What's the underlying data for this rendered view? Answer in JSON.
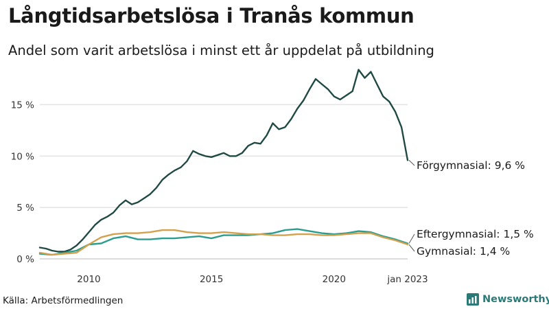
{
  "title": "Långtidsarbetslösa i Tranås kommun",
  "subtitle": "Andel som varit arbetslösa i minst ett år uppdelat på utbildning",
  "source": "Källa: Arbetsförmedlingen",
  "brand": {
    "name": "Newsworthy",
    "icon": "newsworthy-logo-icon",
    "color": "#2b7a78"
  },
  "chart_data": {
    "type": "line",
    "title": "Långtidsarbetslösa i Tranås kommun",
    "subtitle": "Andel som varit arbetslösa i minst ett år uppdelat på utbildning",
    "xlabel": "",
    "ylabel": "",
    "xlim": [
      2008.0,
      2023.0
    ],
    "ylim": [
      0,
      18.5
    ],
    "grid": true,
    "x_ticks": [
      {
        "value": 2010,
        "label": "2010"
      },
      {
        "value": 2015,
        "label": "2015"
      },
      {
        "value": 2020,
        "label": "2020"
      },
      {
        "value": 2023.0,
        "label": "jan 2023"
      }
    ],
    "y_ticks": [
      {
        "value": 0,
        "label": "0 %"
      },
      {
        "value": 5,
        "label": "5 %"
      },
      {
        "value": 10,
        "label": "10 %"
      },
      {
        "value": 15,
        "label": "15 %"
      }
    ],
    "series": [
      {
        "name": "Förgymnasial",
        "color": "#1f4a43",
        "end_label": "Förgymnasial: 9,6 %",
        "points": [
          [
            2008.0,
            1.1
          ],
          [
            2008.25,
            1.0
          ],
          [
            2008.5,
            0.8
          ],
          [
            2008.75,
            0.7
          ],
          [
            2009.0,
            0.7
          ],
          [
            2009.25,
            0.9
          ],
          [
            2009.5,
            1.3
          ],
          [
            2009.75,
            1.9
          ],
          [
            2010.0,
            2.6
          ],
          [
            2010.25,
            3.3
          ],
          [
            2010.5,
            3.8
          ],
          [
            2010.75,
            4.1
          ],
          [
            2011.0,
            4.5
          ],
          [
            2011.25,
            5.2
          ],
          [
            2011.5,
            5.7
          ],
          [
            2011.75,
            5.3
          ],
          [
            2012.0,
            5.5
          ],
          [
            2012.25,
            5.9
          ],
          [
            2012.5,
            6.3
          ],
          [
            2012.75,
            6.9
          ],
          [
            2013.0,
            7.7
          ],
          [
            2013.25,
            8.2
          ],
          [
            2013.5,
            8.6
          ],
          [
            2013.75,
            8.9
          ],
          [
            2014.0,
            9.5
          ],
          [
            2014.25,
            10.5
          ],
          [
            2014.5,
            10.2
          ],
          [
            2014.75,
            10.0
          ],
          [
            2015.0,
            9.9
          ],
          [
            2015.25,
            10.1
          ],
          [
            2015.5,
            10.3
          ],
          [
            2015.75,
            10.0
          ],
          [
            2016.0,
            10.0
          ],
          [
            2016.25,
            10.3
          ],
          [
            2016.5,
            11.0
          ],
          [
            2016.75,
            11.3
          ],
          [
            2017.0,
            11.2
          ],
          [
            2017.25,
            12.0
          ],
          [
            2017.5,
            13.2
          ],
          [
            2017.75,
            12.6
          ],
          [
            2018.0,
            12.8
          ],
          [
            2018.25,
            13.6
          ],
          [
            2018.5,
            14.6
          ],
          [
            2018.75,
            15.4
          ],
          [
            2019.0,
            16.5
          ],
          [
            2019.25,
            17.5
          ],
          [
            2019.5,
            17.0
          ],
          [
            2019.75,
            16.5
          ],
          [
            2020.0,
            15.8
          ],
          [
            2020.25,
            15.5
          ],
          [
            2020.5,
            15.9
          ],
          [
            2020.75,
            16.3
          ],
          [
            2021.0,
            18.4
          ],
          [
            2021.25,
            17.6
          ],
          [
            2021.5,
            18.2
          ],
          [
            2021.75,
            17.0
          ],
          [
            2022.0,
            15.8
          ],
          [
            2022.25,
            15.3
          ],
          [
            2022.5,
            14.3
          ],
          [
            2022.75,
            12.8
          ],
          [
            2023.0,
            9.6
          ]
        ]
      },
      {
        "name": "Eftergymnasial",
        "color": "#2a9d8f",
        "end_label": "Eftergymnasial: 1,5 %",
        "points": [
          [
            2008.0,
            0.5
          ],
          [
            2008.5,
            0.4
          ],
          [
            2009.0,
            0.6
          ],
          [
            2009.5,
            0.8
          ],
          [
            2010.0,
            1.4
          ],
          [
            2010.5,
            1.5
          ],
          [
            2011.0,
            2.0
          ],
          [
            2011.5,
            2.2
          ],
          [
            2012.0,
            1.9
          ],
          [
            2012.5,
            1.9
          ],
          [
            2013.0,
            2.0
          ],
          [
            2013.5,
            2.0
          ],
          [
            2014.0,
            2.1
          ],
          [
            2014.5,
            2.2
          ],
          [
            2015.0,
            2.0
          ],
          [
            2015.5,
            2.3
          ],
          [
            2016.0,
            2.3
          ],
          [
            2016.5,
            2.3
          ],
          [
            2017.0,
            2.4
          ],
          [
            2017.5,
            2.5
          ],
          [
            2018.0,
            2.8
          ],
          [
            2018.5,
            2.9
          ],
          [
            2019.0,
            2.7
          ],
          [
            2019.5,
            2.5
          ],
          [
            2020.0,
            2.4
          ],
          [
            2020.5,
            2.5
          ],
          [
            2021.0,
            2.7
          ],
          [
            2021.5,
            2.6
          ],
          [
            2022.0,
            2.2
          ],
          [
            2022.5,
            1.9
          ],
          [
            2023.0,
            1.5
          ]
        ]
      },
      {
        "name": "Gymnasial",
        "color": "#d3a04d",
        "end_label": "Gymnasial: 1,4 %",
        "points": [
          [
            2008.0,
            0.6
          ],
          [
            2008.5,
            0.4
          ],
          [
            2009.0,
            0.5
          ],
          [
            2009.5,
            0.6
          ],
          [
            2010.0,
            1.4
          ],
          [
            2010.5,
            2.1
          ],
          [
            2011.0,
            2.4
          ],
          [
            2011.5,
            2.5
          ],
          [
            2012.0,
            2.5
          ],
          [
            2012.5,
            2.6
          ],
          [
            2013.0,
            2.8
          ],
          [
            2013.5,
            2.8
          ],
          [
            2014.0,
            2.6
          ],
          [
            2014.5,
            2.5
          ],
          [
            2015.0,
            2.5
          ],
          [
            2015.5,
            2.6
          ],
          [
            2016.0,
            2.5
          ],
          [
            2016.5,
            2.4
          ],
          [
            2017.0,
            2.4
          ],
          [
            2017.5,
            2.3
          ],
          [
            2018.0,
            2.3
          ],
          [
            2018.5,
            2.4
          ],
          [
            2019.0,
            2.4
          ],
          [
            2019.5,
            2.3
          ],
          [
            2020.0,
            2.3
          ],
          [
            2020.5,
            2.4
          ],
          [
            2021.0,
            2.5
          ],
          [
            2021.5,
            2.5
          ],
          [
            2022.0,
            2.1
          ],
          [
            2022.5,
            1.8
          ],
          [
            2023.0,
            1.4
          ]
        ]
      }
    ]
  }
}
